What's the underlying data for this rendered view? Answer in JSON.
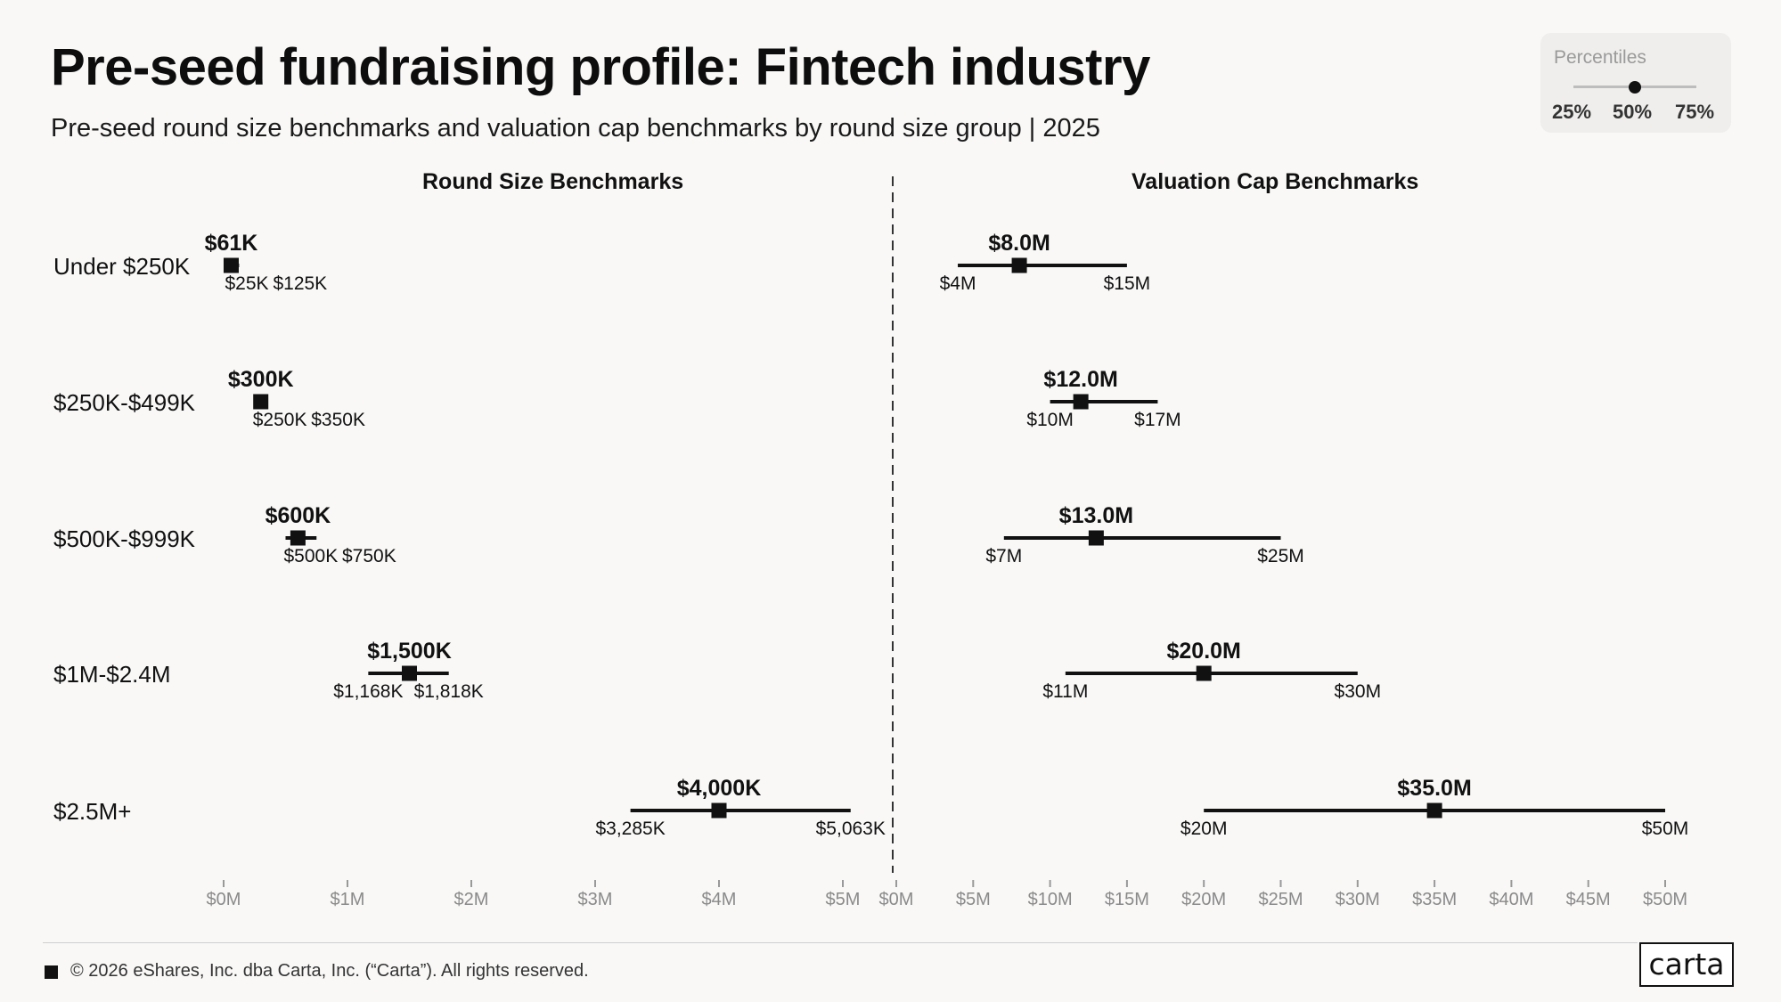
{
  "header": {
    "title": "Pre-seed fundraising profile: Fintech industry",
    "subtitle": "Pre-seed round size benchmarks and valuation cap benchmarks by round size group | 2025"
  },
  "legend": {
    "title": "Percentiles",
    "labels": [
      "25%",
      "50%",
      "75%"
    ]
  },
  "footer": {
    "copyright": "© 2026 eShares, Inc. dba Carta, Inc. (“Carta”). All rights reserved.",
    "logo": "carta"
  },
  "colors": {
    "background": "#f9f8f7",
    "mark": "#111111",
    "axis": "#999999"
  },
  "chart_data": [
    {
      "type": "range",
      "title": "Round Size Benchmarks",
      "categories": [
        "Under $250K",
        "$250K-$499K",
        "$500K-$999K",
        "$1M-$2.4M",
        "$2.5M+"
      ],
      "units": "$K",
      "p25": [
        25,
        250,
        500,
        1168,
        3285
      ],
      "p50": [
        61,
        300,
        600,
        1500,
        4000
      ],
      "p75": [
        125,
        350,
        750,
        1818,
        5063
      ],
      "p25_labels": [
        "$25K",
        "$250K",
        "$500K",
        "$1,168K",
        "$3,285K"
      ],
      "p50_labels": [
        "$61K",
        "$300K",
        "$600K",
        "$1,500K",
        "$4,000K"
      ],
      "p75_labels": [
        "$125K",
        "$350K",
        "$750K",
        "$1,818K",
        "$5,063K"
      ],
      "xlim": [
        0,
        5000
      ],
      "ticks": [
        0,
        1000,
        2000,
        3000,
        4000,
        5000
      ],
      "tick_labels": [
        "$0M",
        "$1M",
        "$2M",
        "$3M",
        "$4M",
        "$5M"
      ]
    },
    {
      "type": "range",
      "title": "Valuation Cap Benchmarks",
      "categories": [
        "Under $250K",
        "$250K-$499K",
        "$500K-$999K",
        "$1M-$2.4M",
        "$2.5M+"
      ],
      "units": "$M",
      "p25": [
        4,
        10,
        7,
        11,
        20
      ],
      "p50": [
        8.0,
        12.0,
        13.0,
        20.0,
        35.0
      ],
      "p75": [
        15,
        17,
        25,
        30,
        50
      ],
      "p25_labels": [
        "$4M",
        "$10M",
        "$7M",
        "$11M",
        "$20M"
      ],
      "p50_labels": [
        "$8.0M",
        "$12.0M",
        "$13.0M",
        "$20.0M",
        "$35.0M"
      ],
      "p75_labels": [
        "$15M",
        "$17M",
        "$25M",
        "$30M",
        "$50M"
      ],
      "xlim": [
        0,
        50
      ],
      "ticks": [
        0,
        5,
        10,
        15,
        20,
        25,
        30,
        35,
        40,
        45,
        50
      ],
      "tick_labels": [
        "$0M",
        "$5M",
        "$10M",
        "$15M",
        "$20M",
        "$25M",
        "$30M",
        "$35M",
        "$40M",
        "$45M",
        "$50M"
      ]
    }
  ]
}
